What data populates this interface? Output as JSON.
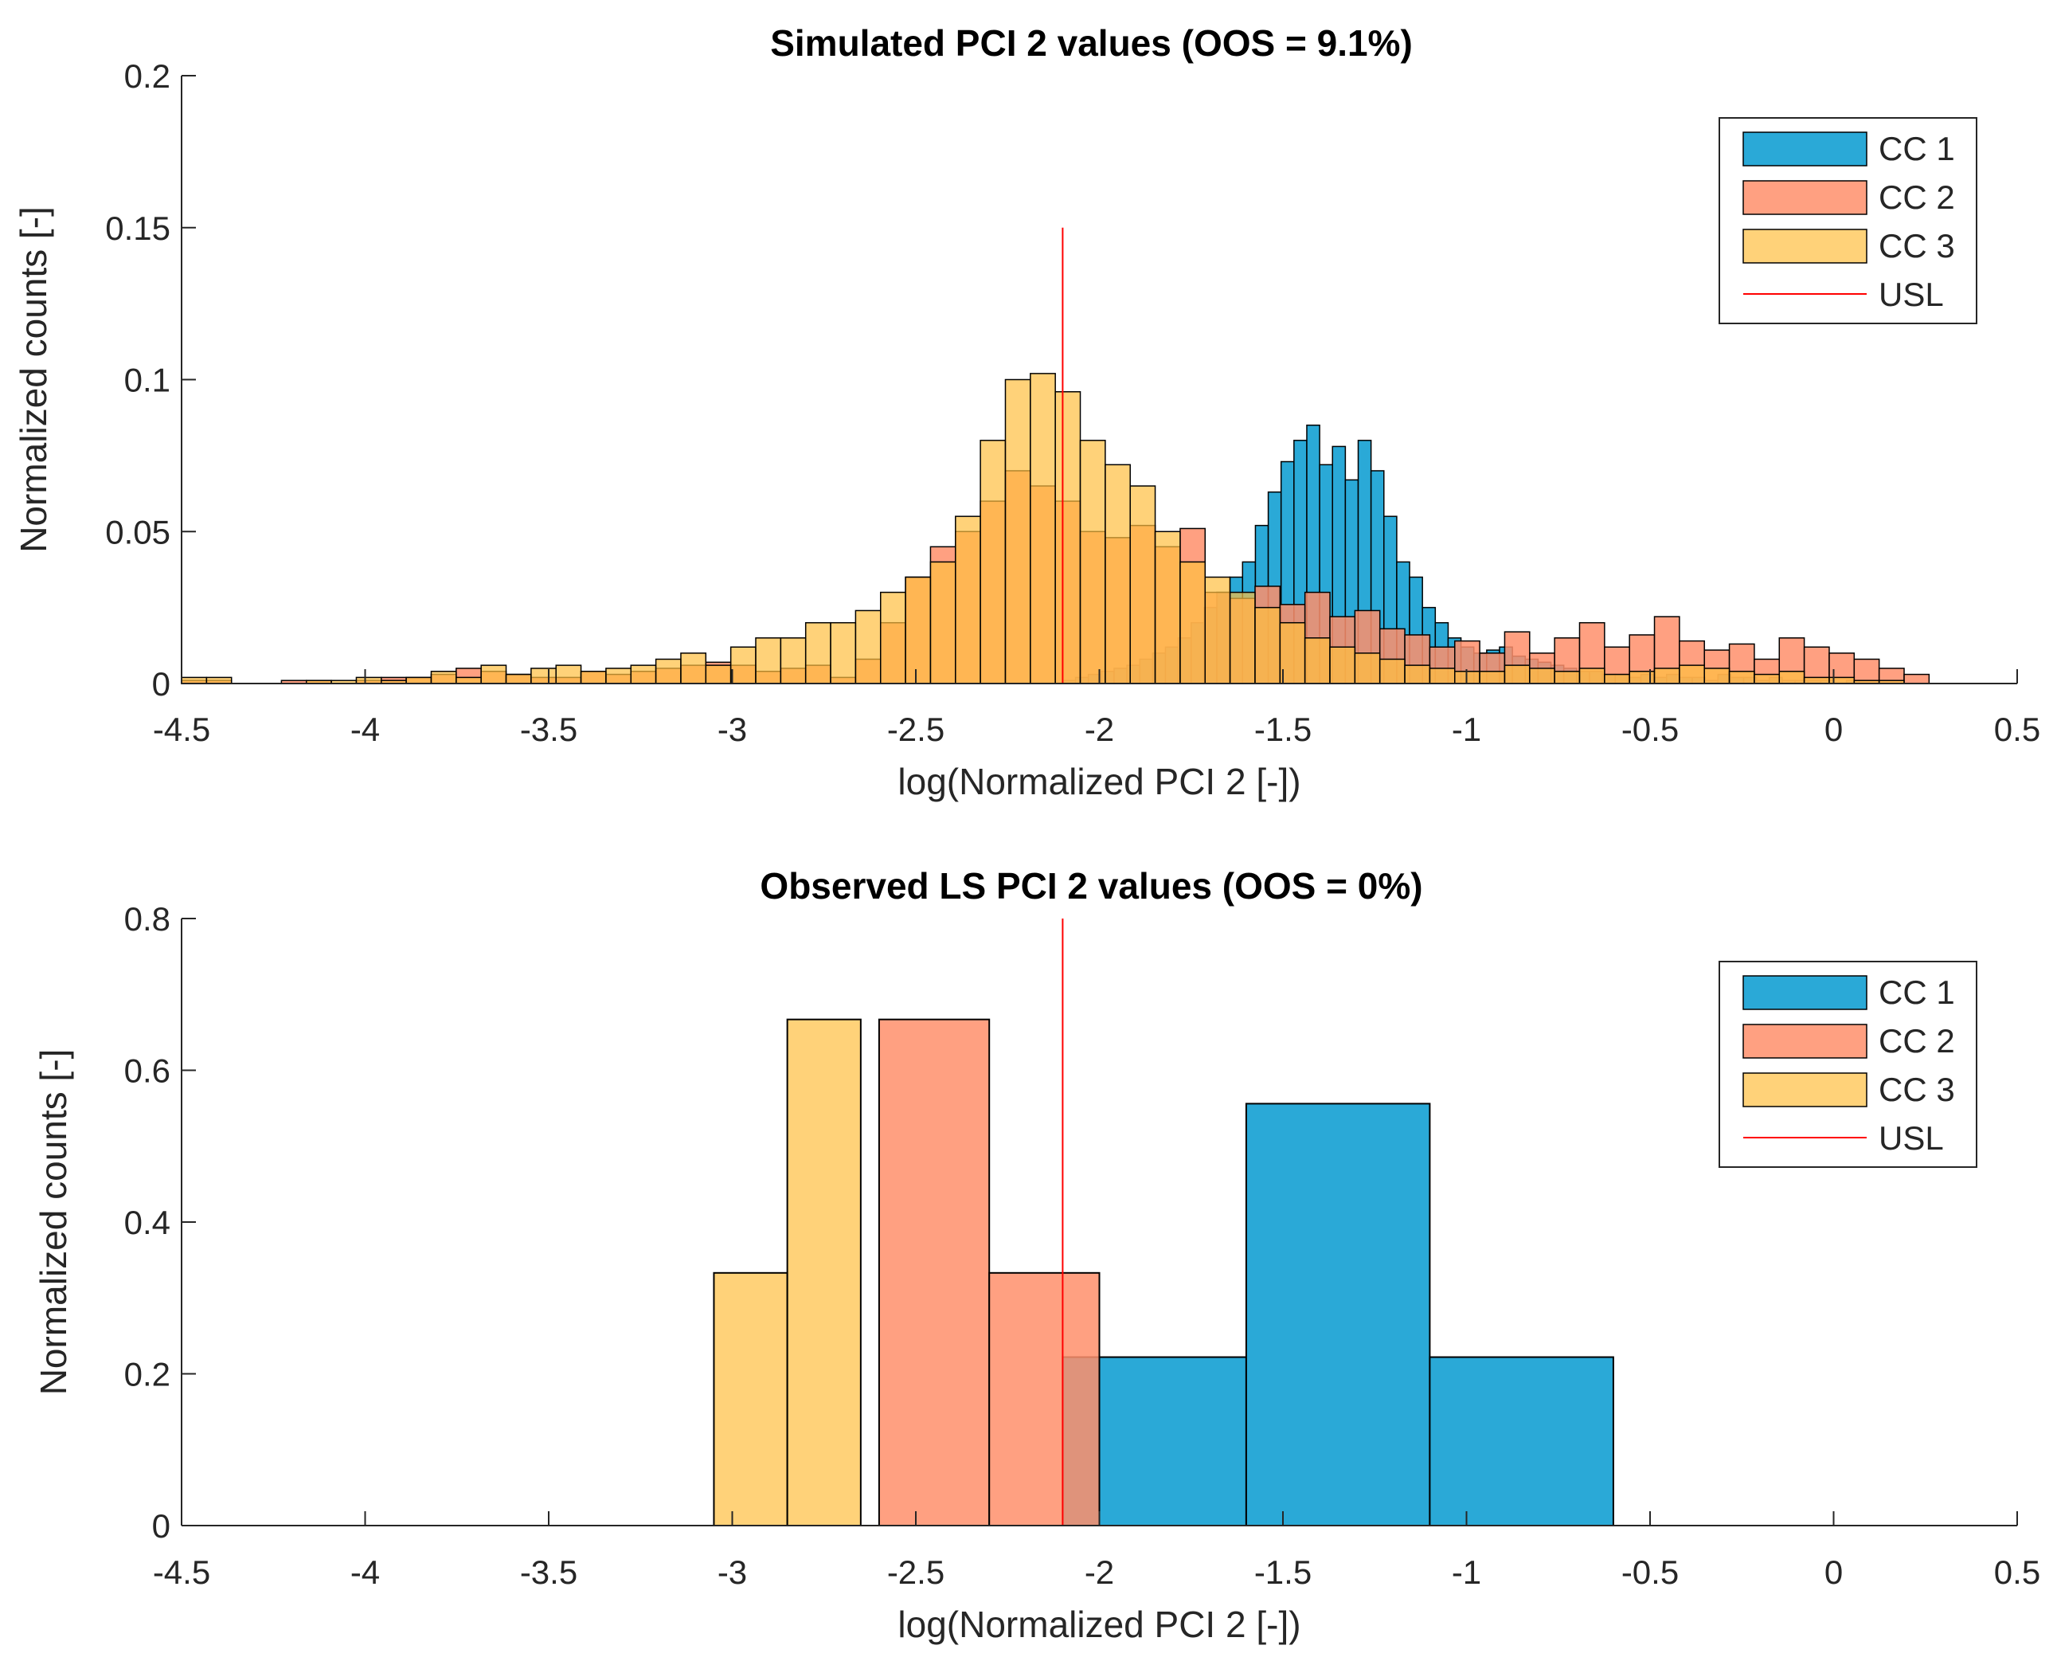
{
  "chart_data": [
    {
      "type": "histogram",
      "title": "Simulated PCI 2 values (OOS = 9.1%)",
      "xlabel": "log(Normalized PCI 2 [-])",
      "ylabel": "Normalized counts [-]",
      "xlim": [
        -4.5,
        0.5
      ],
      "ylim": [
        0,
        0.2
      ],
      "xticks": [
        -4.5,
        -4,
        -3.5,
        -3,
        -2.5,
        -2,
        -1.5,
        -1,
        -0.5,
        0,
        0.5
      ],
      "xtick_labels": [
        "-4.5",
        "-4",
        "-3.5",
        "-3",
        "-2.5",
        "-2",
        "-1.5",
        "-1",
        "-0.5",
        "0",
        "0.5"
      ],
      "yticks": [
        0,
        0.05,
        0.1,
        0.15,
        0.2
      ],
      "ytick_labels": [
        "0",
        "0.05",
        "0.1",
        "0.15",
        "0.2"
      ],
      "usl": {
        "x": -2.1,
        "y_top": 0.15,
        "label": "USL",
        "color": "#ff0000"
      },
      "legend": {
        "position": "top-right",
        "entries": [
          "CC 1",
          "CC 2",
          "CC 3",
          "USL"
        ]
      },
      "series": [
        {
          "name": "CC 1",
          "color": "#0072BD",
          "fill": "#2aa9d7",
          "fill_opacity": 1.0,
          "bin_start": -2.1,
          "bin_width": 0.035,
          "values": [
            0.001,
            0.002,
            0.003,
            0.004,
            0.005,
            0.006,
            0.008,
            0.01,
            0.012,
            0.015,
            0.02,
            0.025,
            0.03,
            0.035,
            0.04,
            0.052,
            0.063,
            0.073,
            0.08,
            0.085,
            0.072,
            0.078,
            0.067,
            0.08,
            0.07,
            0.055,
            0.04,
            0.035,
            0.025,
            0.02,
            0.015,
            0.012,
            0.01,
            0.011,
            0.012,
            0.009,
            0.008,
            0.007,
            0.006,
            0.005,
            0.004,
            0.004,
            0.003,
            0.003,
            0.002,
            0.003,
            0.002,
            0.003,
            0.002,
            0.002,
            0.001,
            0.003,
            0.002,
            0.002,
            0.001,
            0.002,
            0.001,
            0.001,
            0.001,
            0.001,
            0.0,
            0.001
          ]
        },
        {
          "name": "CC 2",
          "color": "#D95319",
          "fill": "#ff8f6b",
          "fill_opacity": 0.85,
          "bin_start": -4.5,
          "bin_width": 0.068,
          "values": [
            0.001,
            0.001,
            0.0,
            0.0,
            0.001,
            0.001,
            0.0,
            0.001,
            0.002,
            0.002,
            0.003,
            0.005,
            0.004,
            0.003,
            0.002,
            0.002,
            0.004,
            0.003,
            0.004,
            0.005,
            0.006,
            0.007,
            0.006,
            0.004,
            0.005,
            0.006,
            0.002,
            0.008,
            0.02,
            0.035,
            0.045,
            0.05,
            0.06,
            0.07,
            0.065,
            0.06,
            0.05,
            0.048,
            0.052,
            0.045,
            0.051,
            0.03,
            0.028,
            0.032,
            0.026,
            0.03,
            0.022,
            0.024,
            0.018,
            0.016,
            0.012,
            0.014,
            0.01,
            0.017,
            0.01,
            0.015,
            0.02,
            0.012,
            0.016,
            0.022,
            0.014,
            0.011,
            0.013,
            0.008,
            0.015,
            0.012,
            0.01,
            0.008,
            0.005,
            0.003
          ]
        },
        {
          "name": "CC 3",
          "color": "#EDB120",
          "fill": "#ffbf40",
          "fill_opacity": 0.7,
          "bin_start": -4.5,
          "bin_width": 0.068,
          "values": [
            0.002,
            0.002,
            0.0,
            0.0,
            0.0,
            0.001,
            0.001,
            0.002,
            0.001,
            0.002,
            0.004,
            0.002,
            0.006,
            0.003,
            0.005,
            0.006,
            0.004,
            0.005,
            0.006,
            0.008,
            0.01,
            0.006,
            0.012,
            0.015,
            0.015,
            0.02,
            0.02,
            0.024,
            0.03,
            0.035,
            0.04,
            0.055,
            0.08,
            0.1,
            0.102,
            0.096,
            0.08,
            0.072,
            0.065,
            0.05,
            0.04,
            0.035,
            0.03,
            0.025,
            0.02,
            0.015,
            0.012,
            0.01,
            0.008,
            0.006,
            0.005,
            0.004,
            0.004,
            0.006,
            0.005,
            0.004,
            0.005,
            0.003,
            0.004,
            0.005,
            0.006,
            0.005,
            0.004,
            0.003,
            0.004,
            0.002,
            0.002,
            0.001,
            0.001
          ]
        }
      ]
    },
    {
      "type": "histogram",
      "title": "Observed LS PCI 2 values (OOS = 0%)",
      "xlabel": "log(Normalized PCI 2 [-])",
      "ylabel": "Normalized counts [-]",
      "xlim": [
        -4.5,
        0.5
      ],
      "ylim": [
        0,
        0.8
      ],
      "xticks": [
        -4.5,
        -4,
        -3.5,
        -3,
        -2.5,
        -2,
        -1.5,
        -1,
        -0.5,
        0,
        0.5
      ],
      "xtick_labels": [
        "-4.5",
        "-4",
        "-3.5",
        "-3",
        "-2.5",
        "-2",
        "-1.5",
        "-1",
        "-0.5",
        "0",
        "0.5"
      ],
      "yticks": [
        0,
        0.2,
        0.4,
        0.6,
        0.8
      ],
      "ytick_labels": [
        "0",
        "0.2",
        "0.4",
        "0.6",
        "0.8"
      ],
      "usl": {
        "x": -2.1,
        "y_top": 0.8,
        "label": "USL",
        "color": "#ff0000"
      },
      "legend": {
        "position": "top-right",
        "entries": [
          "CC 1",
          "CC 2",
          "CC 3",
          "USL"
        ]
      },
      "series": [
        {
          "name": "CC 1",
          "color": "#0072BD",
          "fill": "#2aa9d7",
          "fill_opacity": 1.0,
          "bins": [
            [
              -2.1,
              -1.6,
              0.222
            ],
            [
              -1.6,
              -1.1,
              0.556
            ],
            [
              -1.1,
              -0.6,
              0.222
            ]
          ]
        },
        {
          "name": "CC 2",
          "color": "#D95319",
          "fill": "#ff8f6b",
          "fill_opacity": 0.85,
          "bins": [
            [
              -2.6,
              -2.3,
              0.667
            ],
            [
              -2.3,
              -2.0,
              0.333
            ]
          ]
        },
        {
          "name": "CC 3",
          "color": "#EDB120",
          "fill": "#ffbf40",
          "fill_opacity": 0.7,
          "bins": [
            [
              -3.05,
              -2.85,
              0.333
            ],
            [
              -2.85,
              -2.65,
              0.667
            ]
          ]
        }
      ]
    }
  ]
}
